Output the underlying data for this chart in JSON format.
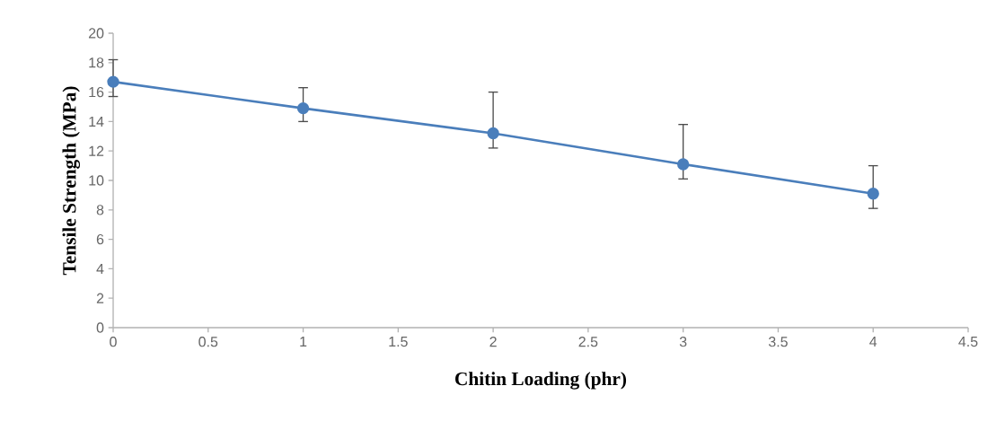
{
  "chart_data": {
    "type": "line",
    "xlabel": "Chitin Loading (phr)",
    "ylabel": "Tensile Strength (MPa)",
    "x": [
      0,
      1,
      2,
      3,
      4
    ],
    "series": [
      {
        "color": "#4a7ebb",
        "values": [
          16.7,
          14.9,
          13.2,
          11.1,
          9.1
        ],
        "errors": [
          [
            15.7,
            18.2
          ],
          [
            14.0,
            16.3
          ],
          [
            12.2,
            16.0
          ],
          [
            10.1,
            13.8
          ],
          [
            8.1,
            11.0
          ]
        ]
      }
    ],
    "xlim": [
      0,
      4.5
    ],
    "xticks": [
      0,
      0.5,
      1,
      1.5,
      2,
      2.5,
      3,
      3.5,
      4,
      4.5
    ],
    "ylim": [
      0,
      20
    ],
    "yticks": [
      0,
      2,
      4,
      6,
      8,
      10,
      12,
      14,
      16,
      18,
      20
    ],
    "grid": false,
    "marker": "circle",
    "line_style": "solid"
  }
}
